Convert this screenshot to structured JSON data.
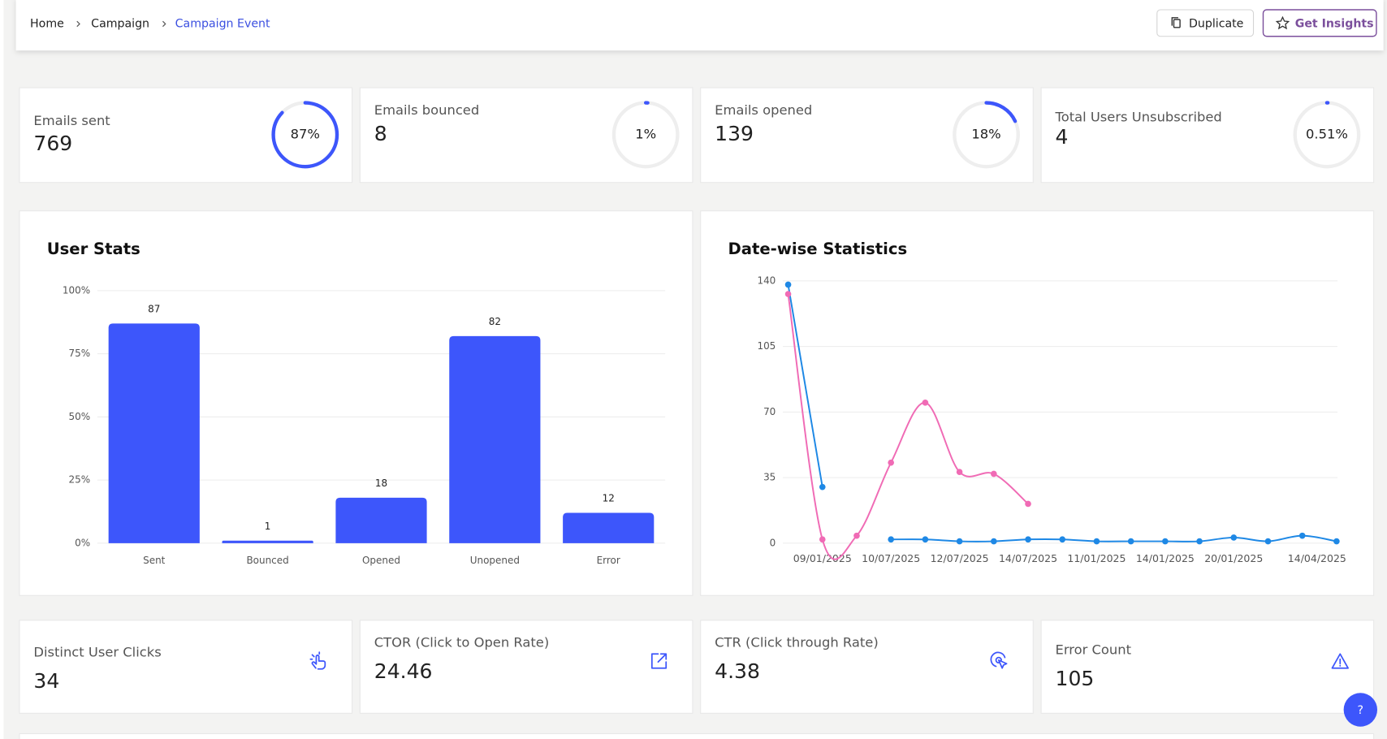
{
  "breadcrumb": {
    "items": [
      "Home",
      "Campaign",
      "Campaign Event"
    ]
  },
  "actions": [
    "Duplicate",
    "Get Insights"
  ],
  "stat_cards": [
    {
      "label": "Emails sent",
      "value": 769,
      "percent": {
        "value": 87,
        "label": "87%"
      }
    },
    {
      "label": "Emails bounced",
      "value": 8,
      "percent": {
        "value": 1,
        "label": "1%"
      }
    },
    {
      "label": "Emails opened",
      "value": 139,
      "percent": {
        "value": 18,
        "label": "18%"
      }
    },
    {
      "label": "Total Users Unsubscribed",
      "value": 4,
      "percent": {
        "value": 0.51,
        "label": "0.51%"
      }
    }
  ],
  "chart_data": [
    {
      "type": "bar",
      "title": "User Stats",
      "categories": [
        "Sent",
        "Bounced",
        "Opened",
        "Unopened",
        "Error"
      ],
      "values": [
        87,
        1,
        18,
        82,
        12
      ],
      "color": "#3d56fb",
      "ylim": [
        0,
        100
      ],
      "yticks": [
        {
          "value": 0,
          "label": "0%"
        },
        {
          "value": 25,
          "label": "25%"
        },
        {
          "value": 50,
          "label": "50%"
        },
        {
          "value": 75,
          "label": "75%"
        },
        {
          "value": 100,
          "label": "100%"
        }
      ],
      "grid": true
    },
    {
      "type": "line",
      "title": "Date-wise Statistics",
      "categories": [
        null,
        "09/01/2025",
        null,
        "10/07/2025",
        null,
        "12/07/2025",
        null,
        "14/07/2025",
        null,
        "11/01/2025",
        null,
        "14/01/2025",
        null,
        "20/01/2025",
        null,
        null,
        "14/04/2025"
      ],
      "series": [
        {
          "color": "#1e88e5",
          "values": [
            138,
            30,
            null,
            2,
            2,
            1,
            1,
            2,
            2,
            1,
            1,
            1,
            1,
            3,
            1,
            4,
            1
          ]
        },
        {
          "color": "#f06bb5",
          "values": [
            133,
            2,
            4,
            43,
            75,
            38,
            37,
            21,
            null,
            null,
            null,
            null,
            null,
            null,
            null,
            null,
            null
          ]
        }
      ],
      "ylim": [
        0,
        140
      ],
      "yticks": [
        0,
        35,
        70,
        105,
        140
      ],
      "grid": true
    }
  ],
  "metric_cards": [
    {
      "label": "Distinct User Clicks",
      "value": 34
    },
    {
      "label": "CTOR (Click to Open Rate)",
      "value": 24.46
    },
    {
      "label": "CTR (Click through Rate)",
      "value": 4.38
    },
    {
      "label": "Error Count",
      "value": 105
    }
  ],
  "help": "?"
}
